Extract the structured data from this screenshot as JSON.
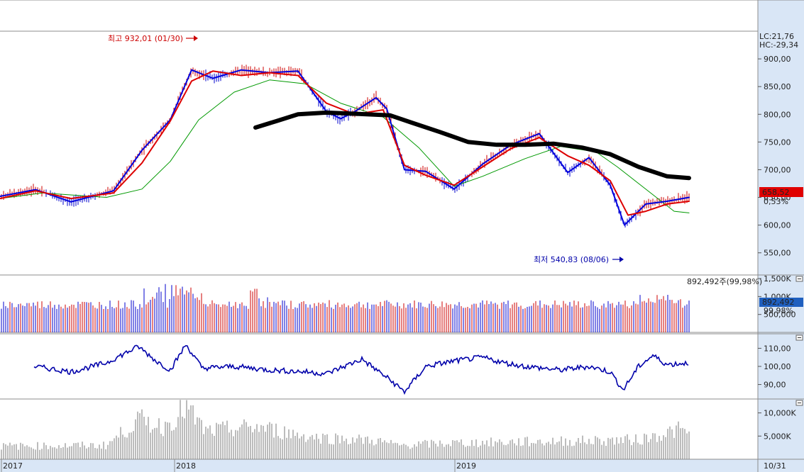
{
  "colors": {
    "axis_bg": "#d9e6f6",
    "border": "#8c8c8c",
    "price_red": "#cc0000",
    "price_blue": "#0000cc",
    "ma_short": "#dd0000",
    "ma_mid": "#0000dd",
    "ma_long": "#009900",
    "ma_extra": "#000000",
    "label_red": "#ee0000",
    "label_blue": "#0066cc",
    "ratio_line": "#0000aa",
    "bottom_bars": "#7a7a7a"
  },
  "chart_data": [
    {
      "id": "price",
      "type": "candlestick",
      "ylim": [
        510,
        950
      ],
      "y_ticks": [
        "900,00",
        "850,00",
        "800,00",
        "750,00",
        "700,00",
        "650,00",
        "600,00",
        "550,00"
      ],
      "y_tick_values": [
        900,
        850,
        800,
        750,
        700,
        650,
        600,
        550
      ],
      "top_labels": [
        {
          "text": "LC:21,76",
          "color": "red"
        },
        {
          "text": "HC:-29,34",
          "color": "blue"
        }
      ],
      "current_price": "658,52",
      "change_pct": "0,53%",
      "annotations": {
        "high": "최고 932,01 (01/30)",
        "low": "최저 540,83 (08/06)"
      },
      "series": [
        {
          "kind": "ma_short",
          "points": [
            [
              0,
              648
            ],
            [
              50,
              662
            ],
            [
              100,
              648
            ],
            [
              160,
              658
            ],
            [
              200,
              712
            ],
            [
              240,
              788
            ],
            [
              270,
              860
            ],
            [
              300,
              878
            ],
            [
              340,
              870
            ],
            [
              380,
              875
            ],
            [
              420,
              870
            ],
            [
              460,
              820
            ],
            [
              500,
              800
            ],
            [
              540,
              808
            ],
            [
              570,
              708
            ],
            [
              600,
              690
            ],
            [
              640,
              672
            ],
            [
              680,
              705
            ],
            [
              720,
              738
            ],
            [
              760,
              758
            ],
            [
              800,
              725
            ],
            [
              830,
              708
            ],
            [
              860,
              680
            ],
            [
              885,
              618
            ],
            [
              910,
              625
            ],
            [
              940,
              638
            ],
            [
              971,
              643
            ]
          ]
        },
        {
          "kind": "ma_mid",
          "points": [
            [
              0,
              652
            ],
            [
              50,
              664
            ],
            [
              100,
              642
            ],
            [
              160,
              662
            ],
            [
              200,
              735
            ],
            [
              240,
              790
            ],
            [
              270,
              880
            ],
            [
              300,
              865
            ],
            [
              340,
              880
            ],
            [
              380,
              875
            ],
            [
              420,
              878
            ],
            [
              460,
              805
            ],
            [
              480,
              792
            ],
            [
              500,
              805
            ],
            [
              530,
              830
            ],
            [
              545,
              810
            ],
            [
              570,
              700
            ],
            [
              600,
              697
            ],
            [
              640,
              665
            ],
            [
              680,
              710
            ],
            [
              720,
              745
            ],
            [
              760,
              765
            ],
            [
              800,
              695
            ],
            [
              830,
              722
            ],
            [
              860,
              672
            ],
            [
              880,
              600
            ],
            [
              910,
              638
            ],
            [
              940,
              643
            ],
            [
              971,
              650
            ]
          ]
        },
        {
          "kind": "ma_long",
          "points": [
            [
              0,
              648
            ],
            [
              60,
              658
            ],
            [
              150,
              650
            ],
            [
              200,
              665
            ],
            [
              240,
              715
            ],
            [
              280,
              790
            ],
            [
              330,
              840
            ],
            [
              380,
              862
            ],
            [
              430,
              855
            ],
            [
              480,
              820
            ],
            [
              540,
              795
            ],
            [
              590,
              740
            ],
            [
              640,
              670
            ],
            [
              680,
              688
            ],
            [
              740,
              720
            ],
            [
              790,
              742
            ],
            [
              840,
              732
            ],
            [
              870,
              705
            ],
            [
              900,
              675
            ],
            [
              930,
              645
            ],
            [
              950,
              625
            ],
            [
              971,
              622
            ]
          ]
        },
        {
          "kind": "ma_extra",
          "points": [
            [
              360,
              776
            ],
            [
              390,
              788
            ],
            [
              420,
              800
            ],
            [
              460,
              803
            ],
            [
              500,
              801
            ],
            [
              550,
              798
            ],
            [
              580,
              785
            ],
            [
              620,
              768
            ],
            [
              660,
              750
            ],
            [
              700,
              745
            ],
            [
              740,
              745
            ],
            [
              780,
              747
            ],
            [
              820,
              740
            ],
            [
              860,
              728
            ],
            [
              900,
              705
            ],
            [
              940,
              688
            ],
            [
              971,
              685
            ]
          ]
        }
      ]
    },
    {
      "id": "volume",
      "type": "bar",
      "ylim": [
        0,
        1600
      ],
      "y_ticks": [
        "1,500K",
        "1,000K",
        "500,000"
      ],
      "y_tick_values": [
        1500,
        1000,
        500
      ],
      "header": "892,492주(99,98%)",
      "current_value": "892,492",
      "current_pct": "99,98%"
    },
    {
      "id": "ratio",
      "type": "line",
      "ylim": [
        82,
        118
      ],
      "y_ticks": [
        "110,00",
        "100,00",
        "90,00"
      ],
      "y_tick_values": [
        110,
        100,
        90
      ]
    },
    {
      "id": "bottom_volume",
      "type": "bar",
      "ylim": [
        0,
        13000
      ],
      "y_ticks": [
        "10,000K",
        "5,000K"
      ],
      "y_tick_values": [
        10000,
        5000
      ]
    }
  ],
  "x_axis": {
    "labels": [
      "2017",
      "2018",
      "2019"
    ],
    "end_label": "10/31"
  }
}
